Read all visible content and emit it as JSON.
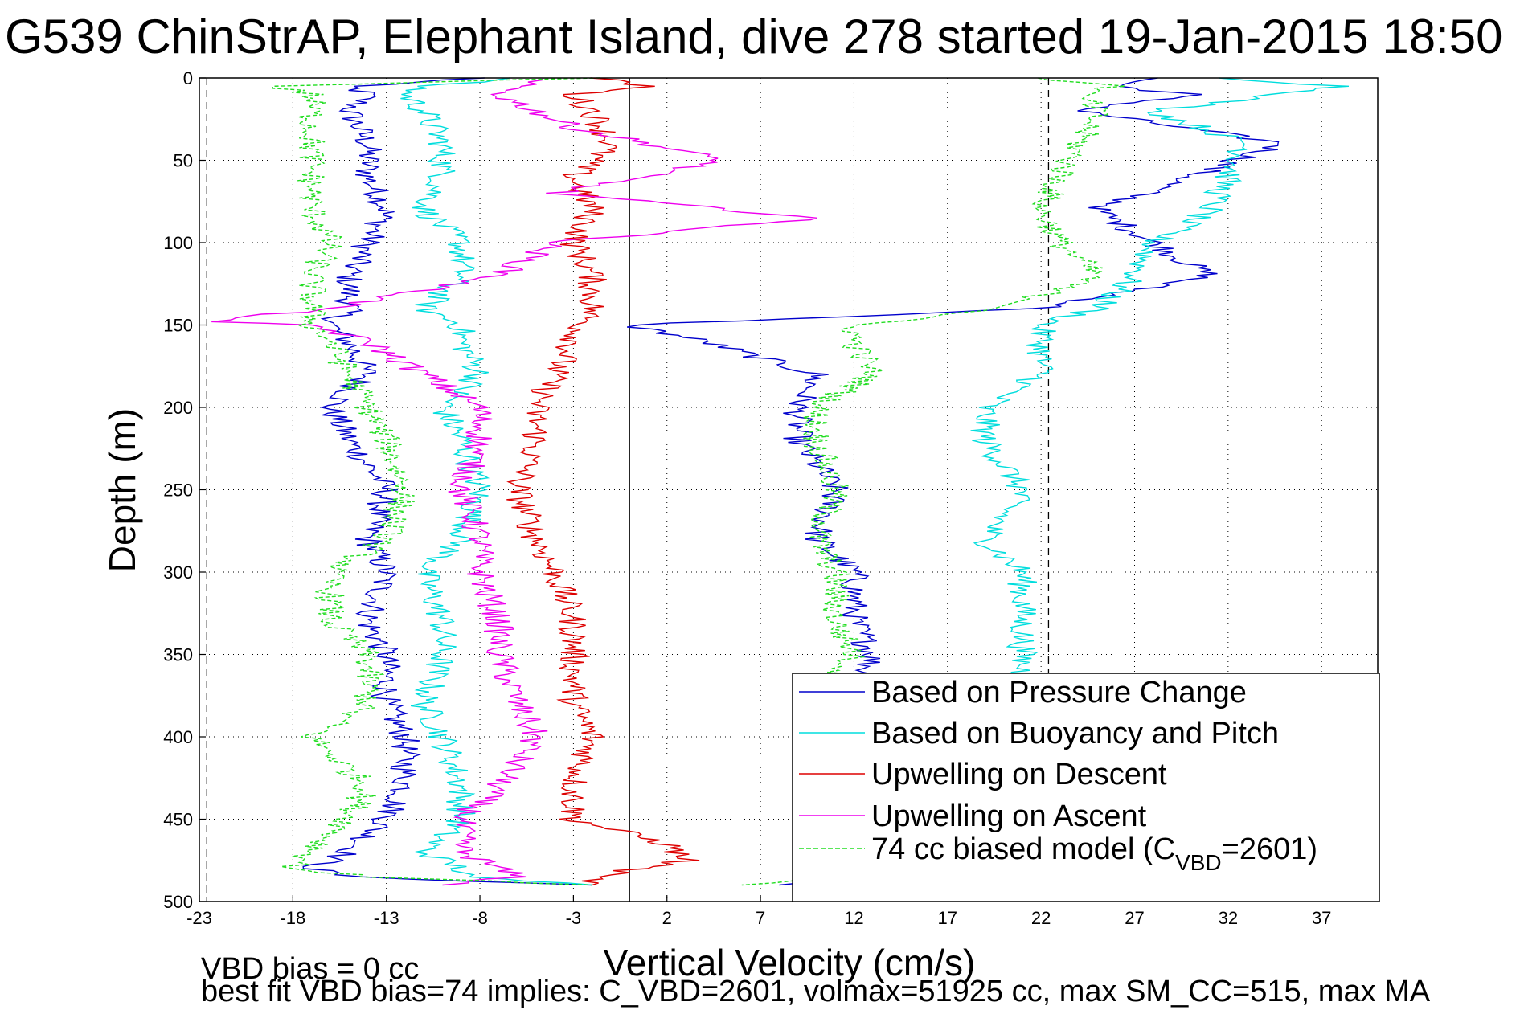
{
  "chart_data": {
    "type": "line",
    "title": "G539 ChinStrAP, Elephant Island, dive 278 started 19-Jan-2015 18:50",
    "xlabel": "Vertical Velocity (cm/s)",
    "ylabel": "Depth (m)",
    "xlim": [
      -23,
      40
    ],
    "ylim": [
      0,
      500
    ],
    "y_reversed": true,
    "grid": true,
    "x_ticks": [
      -23,
      -18,
      -13,
      -8,
      -3,
      2,
      7,
      12,
      17,
      22,
      27,
      32,
      37
    ],
    "y_ticks": [
      0,
      50,
      100,
      150,
      200,
      250,
      300,
      350,
      400,
      450,
      500
    ],
    "reference_lines": {
      "dashed_x": [
        -22.6,
        22.4
      ],
      "solid_x": [
        0
      ]
    },
    "legend_position": "bottom-right",
    "series": [
      {
        "name": "Based on Pressure Change",
        "color": "#0000cc",
        "depth": [
          0,
          5,
          10,
          20,
          40,
          60,
          80,
          100,
          120,
          140,
          150,
          160,
          180,
          200,
          220,
          250,
          280,
          300,
          330,
          350,
          380,
          400,
          430,
          450,
          470,
          480,
          485,
          490
        ],
        "descent": [
          -8,
          -15,
          -14,
          -15,
          -14,
          -14,
          -13,
          -14,
          -15,
          -15,
          -16,
          -15,
          -14,
          -16,
          -15,
          -13,
          -14,
          -13,
          -14,
          -13,
          -13,
          -12,
          -12,
          -13,
          -15,
          -17,
          -15,
          -2
        ],
        "ascent": [
          28,
          26,
          30,
          24,
          35,
          30,
          25,
          28,
          31,
          22,
          0,
          4,
          10,
          9,
          9,
          11,
          10,
          12,
          12,
          13,
          12,
          12,
          12,
          12,
          12,
          12,
          10,
          8
        ]
      },
      {
        "name": "Based on Buoyancy and Pitch",
        "color": "#00dddd",
        "depth": [
          0,
          5,
          10,
          20,
          40,
          60,
          80,
          100,
          120,
          140,
          150,
          160,
          180,
          200,
          220,
          250,
          280,
          300,
          330,
          350,
          380,
          400,
          430,
          450,
          470,
          480,
          485,
          490
        ],
        "descent": [
          -6,
          -11,
          -12,
          -11,
          -10,
          -10,
          -11,
          -9,
          -9,
          -11,
          -9,
          -9,
          -8,
          -10,
          -9,
          -8,
          -9,
          -11,
          -10,
          -10,
          -11,
          -10,
          -9,
          -9,
          -11,
          -9,
          -9,
          -2
        ],
        "ascent": [
          32,
          38,
          35,
          28,
          33,
          32,
          31,
          28,
          27,
          25,
          22,
          22,
          22,
          19,
          19,
          21,
          19,
          21,
          21,
          21,
          21,
          21,
          21,
          21,
          21,
          21,
          21,
          21
        ]
      },
      {
        "name": "Upwelling on Descent",
        "color": "#dd0000",
        "depth": [
          0,
          5,
          10,
          20,
          40,
          60,
          80,
          100,
          120,
          140,
          160,
          180,
          200,
          220,
          250,
          280,
          300,
          330,
          350,
          380,
          400,
          430,
          450,
          465,
          475,
          485,
          490
        ],
        "values": [
          -2,
          1,
          -3,
          -2,
          -1,
          -3,
          -2,
          -3,
          -2,
          -2,
          -3,
          -4,
          -5,
          -5,
          -6,
          -5,
          -4,
          -3,
          -3,
          -3,
          -2,
          -3,
          -3,
          2,
          3,
          -2,
          -2
        ]
      },
      {
        "name": "Upwelling on Ascent",
        "color": "#ee00ee",
        "depth": [
          0,
          10,
          30,
          50,
          70,
          85,
          100,
          120,
          140,
          148,
          150,
          160,
          180,
          200,
          220,
          250,
          280,
          300,
          330,
          350,
          380,
          400,
          430,
          450,
          470,
          485,
          490
        ],
        "values": [
          -5,
          -7,
          -3,
          5,
          -4,
          10,
          -4,
          -7,
          -16,
          -23,
          -17,
          -14,
          -11,
          -8,
          -8,
          -9,
          -8,
          -8,
          -7,
          -7,
          -6,
          -5,
          -7,
          -9,
          -9,
          -6,
          -10
        ]
      },
      {
        "name": "74 cc biased model (C",
        "name_sub": "VBD",
        "name_suffix": "=2601)",
        "color": "#22dd22",
        "dashed": true,
        "depth": [
          0,
          5,
          10,
          20,
          40,
          60,
          80,
          100,
          120,
          140,
          150,
          160,
          180,
          200,
          220,
          250,
          280,
          300,
          330,
          350,
          380,
          400,
          430,
          450,
          470,
          480,
          485,
          490
        ],
        "descent": [
          -2,
          -19,
          -17,
          -17,
          -17,
          -17,
          -17,
          -16,
          -17,
          -17,
          -17,
          -16,
          -15,
          -14,
          -13,
          -12,
          -13,
          -16,
          -16,
          -14,
          -14,
          -17,
          -14,
          -15,
          -17,
          -18,
          -14,
          -2
        ],
        "ascent": [
          22,
          26,
          24,
          25,
          24,
          23,
          22,
          23,
          25,
          20,
          12,
          12,
          13,
          10,
          10,
          11,
          10,
          11,
          11,
          12,
          10,
          10,
          10,
          10,
          10,
          10,
          10,
          6
        ]
      }
    ],
    "notes": [
      "VBD bias = 0 cc",
      "best fit VBD bias=74 implies: C_VBD=2601, volmax=51925 cc, max SM_CC=515, max MA"
    ]
  }
}
